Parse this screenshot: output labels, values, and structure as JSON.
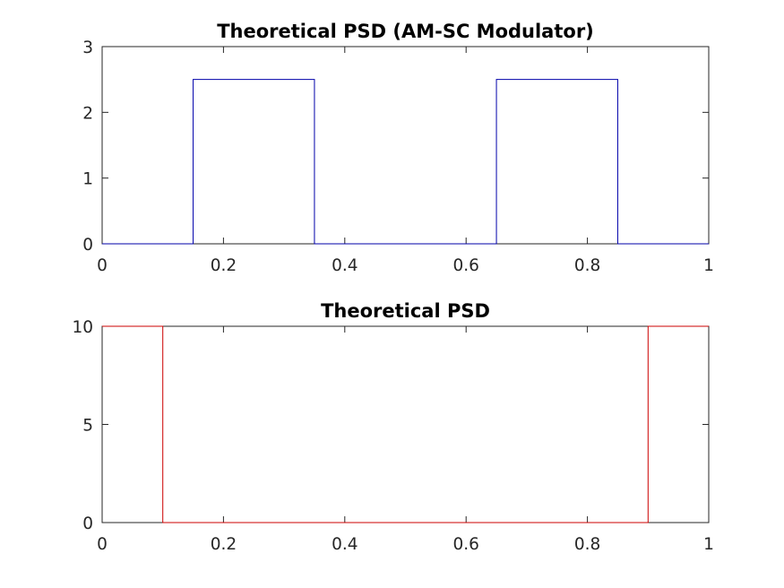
{
  "chart_data": [
    {
      "type": "line",
      "title": "Theoretical PSD (AM-SC Modulator)",
      "xlabel": "",
      "ylabel": "",
      "xlim": [
        0,
        1
      ],
      "ylim": [
        0,
        3
      ],
      "xticks": [
        0,
        0.2,
        0.4,
        0.6,
        0.8,
        1
      ],
      "xtick_labels": [
        "0",
        "0.2",
        "0.4",
        "0.6",
        "0.8",
        "1"
      ],
      "yticks": [
        0,
        1,
        2,
        3
      ],
      "ytick_labels": [
        "0",
        "1",
        "2",
        "3"
      ],
      "grid": false,
      "series": [
        {
          "color": "#0000aa",
          "x": [
            0,
            0.15,
            0.15,
            0.35,
            0.35,
            0.65,
            0.65,
            0.85,
            0.85,
            1
          ],
          "y": [
            0,
            0,
            2.5,
            2.5,
            0,
            0,
            2.5,
            2.5,
            0,
            0
          ]
        }
      ]
    },
    {
      "type": "line",
      "title": "Theoretical PSD",
      "xlabel": "",
      "ylabel": "",
      "xlim": [
        0,
        1
      ],
      "ylim": [
        0,
        10
      ],
      "xticks": [
        0,
        0.2,
        0.4,
        0.6,
        0.8,
        1
      ],
      "xtick_labels": [
        "0",
        "0.2",
        "0.4",
        "0.6",
        "0.8",
        "1"
      ],
      "yticks": [
        0,
        5,
        10
      ],
      "ytick_labels": [
        "0",
        "5",
        "10"
      ],
      "grid": false,
      "series": [
        {
          "color": "#cc0000",
          "x": [
            0,
            0.1,
            0.1,
            0.9,
            0.9,
            1
          ],
          "y": [
            10,
            10,
            0,
            0,
            10,
            10
          ]
        }
      ]
    }
  ]
}
